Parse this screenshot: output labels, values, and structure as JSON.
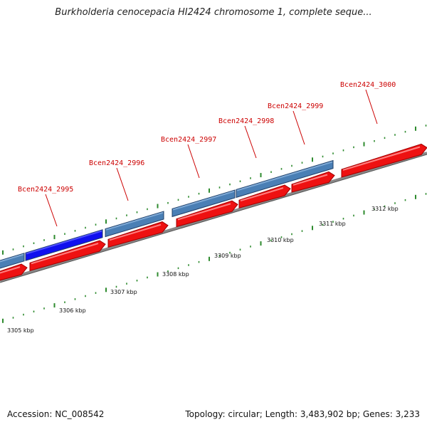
{
  "title": "Burkholderia cenocepacia HI2424 chromosome 1, complete seque...",
  "footer": {
    "accession": "Accession: NC_008542",
    "summary": "Topology: circular; Length: 3,483,902 bp; Genes: 3,233"
  },
  "colors": {
    "plus_strand_gene": "#4a7fb5",
    "selected_gene": "#1010ee",
    "minus_strand_gene": "#ee1111",
    "label": "#cc0000",
    "ticks": "#2e8b2e",
    "backbone": "#888888"
  },
  "ruler_labels": [
    "3305 kbp",
    "3306 kbp",
    "3307 kbp",
    "3308 kbp",
    "3309 kbp",
    "3310 kbp",
    "3311 kbp",
    "3312 kbp"
  ],
  "gene_labels": [
    "Bcen2424_2995",
    "Bcen2424_2996",
    "Bcen2424_2997",
    "Bcen2424_2998",
    "Bcen2424_2999",
    "Bcen2424_3000"
  ]
}
